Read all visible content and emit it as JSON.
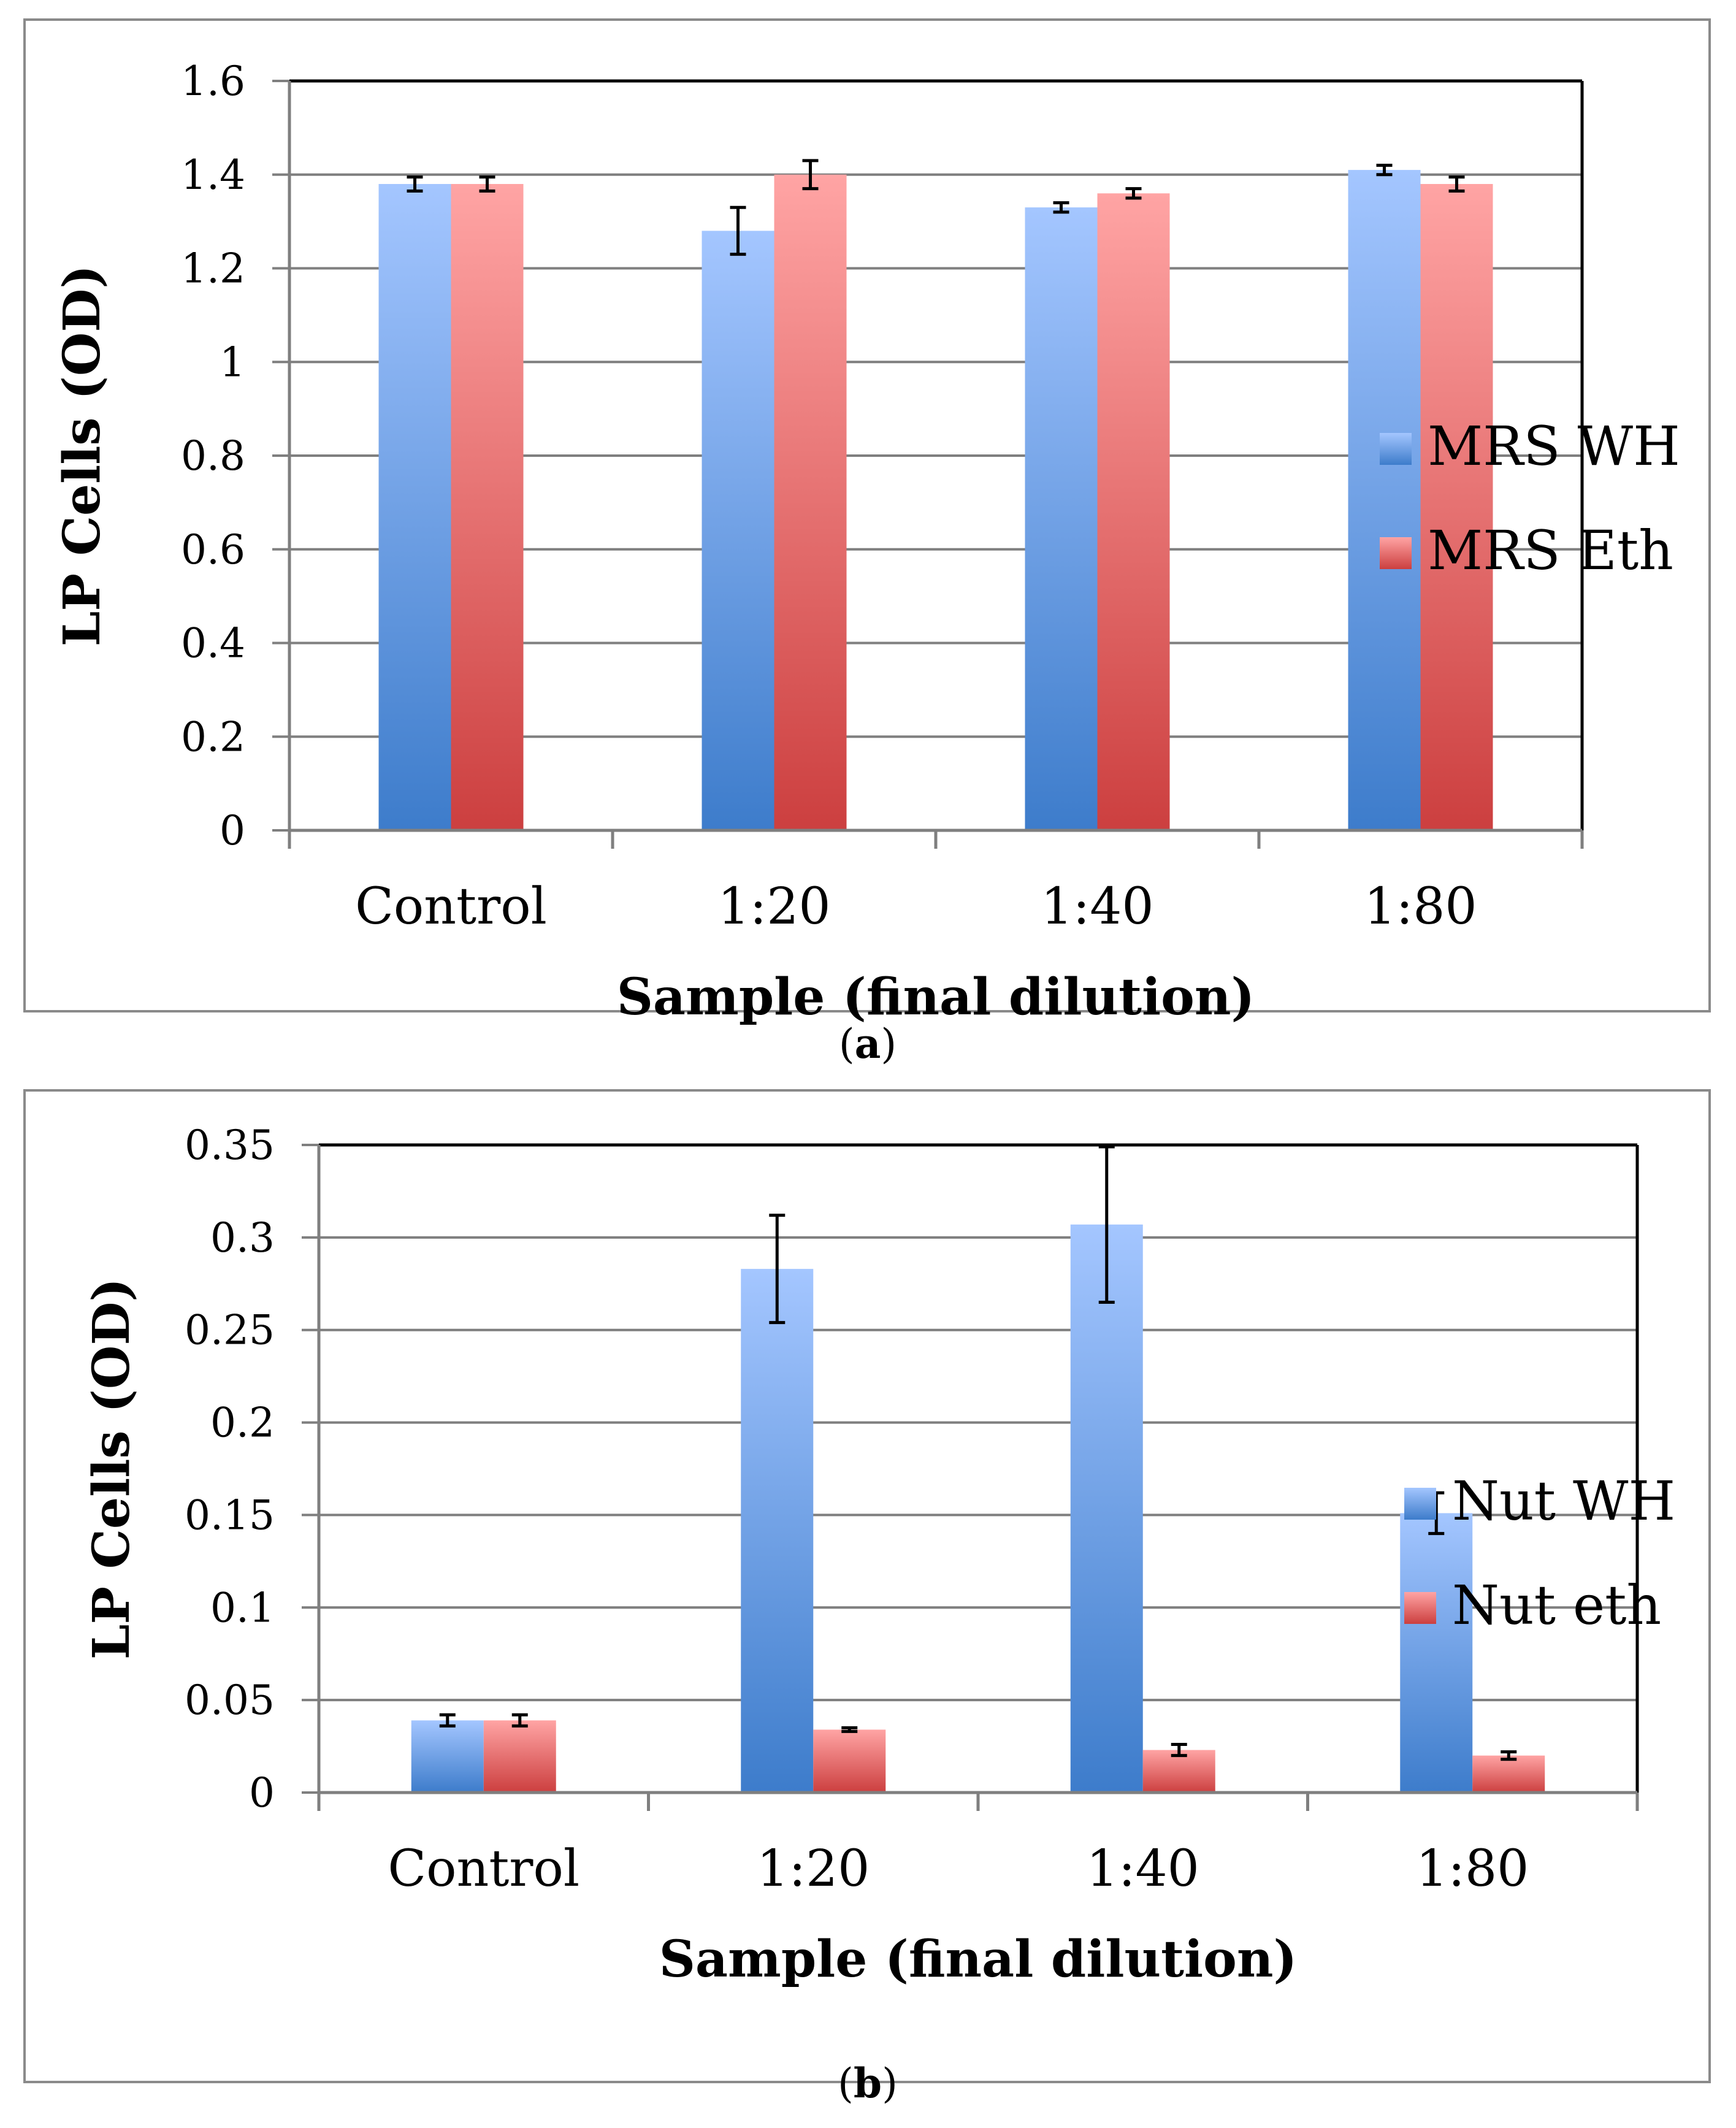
{
  "chart_data": [
    {
      "type": "bar",
      "panel_label": "a",
      "categories": [
        "Control",
        "1:20",
        "1:40",
        "1:80"
      ],
      "series": [
        {
          "name": "MRS WH",
          "values": [
            1.38,
            1.28,
            1.33,
            1.41
          ],
          "errors": [
            0.015,
            0.05,
            0.01,
            0.01
          ],
          "color_top": "#a4c6ff",
          "color_bottom": "#3d7ccb"
        },
        {
          "name": "MRS Eth",
          "values": [
            1.38,
            1.4,
            1.36,
            1.38
          ],
          "errors": [
            0.015,
            0.03,
            0.01,
            0.015
          ],
          "color_top": "#ffa4a4",
          "color_bottom": "#cc3f3f"
        }
      ],
      "ylabel": "LP Cells (OD)",
      "xlabel": "Sample (final dilution)",
      "ylim": [
        0,
        1.6
      ],
      "yticks": [
        0,
        0.2,
        0.4,
        0.6,
        0.8,
        1,
        1.2,
        1.4,
        1.6
      ],
      "ytick_labels": [
        "0",
        "0.2",
        "0.4",
        "0.6",
        "0.8",
        "1",
        "1.2",
        "1.4",
        "1.6"
      ],
      "grid": true,
      "legend": "right"
    },
    {
      "type": "bar",
      "panel_label": "b",
      "categories": [
        "Control",
        "1:20",
        "1:40",
        "1:80"
      ],
      "series": [
        {
          "name": "Nut WH",
          "values": [
            0.039,
            0.283,
            0.307,
            0.151
          ],
          "errors": [
            0.003,
            0.029,
            0.042,
            0.011
          ],
          "color_top": "#a4c6ff",
          "color_bottom": "#3d7ccb"
        },
        {
          "name": "Nut eth",
          "values": [
            0.039,
            0.034,
            0.023,
            0.02
          ],
          "errors": [
            0.003,
            0.001,
            0.003,
            0.002
          ],
          "color_top": "#ffa4a4",
          "color_bottom": "#cc3f3f"
        }
      ],
      "ylabel": "LP Cells (OD)",
      "xlabel": "Sample (final dilution)",
      "ylim": [
        0,
        0.35
      ],
      "yticks": [
        0,
        0.05,
        0.1,
        0.15,
        0.2,
        0.25,
        0.3,
        0.35
      ],
      "ytick_labels": [
        "0",
        "0.05",
        "0.1",
        "0.15",
        "0.2",
        "0.25",
        "0.3",
        "0.35"
      ],
      "grid": true,
      "legend": "right"
    }
  ]
}
